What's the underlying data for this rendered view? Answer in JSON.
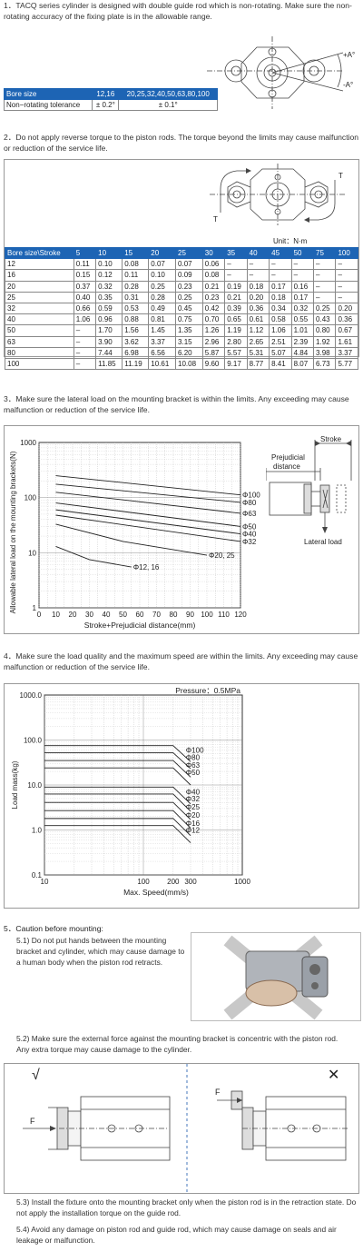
{
  "section1": {
    "text": "1．TACQ series cylinder is designed with double guide rod which is non-rotating. Make sure the non-rotating accuracy of the fixing plate is in the allowable range.",
    "table": {
      "header": [
        "Bore size",
        "12,16",
        "20,25,32,40,50,63,80,100"
      ],
      "row": [
        "Non−rotating tolerance",
        "± 0.2°",
        "± 0.1°"
      ]
    },
    "diagram": {
      "plus_label": "+A°",
      "minus_label": "-A°"
    }
  },
  "section2": {
    "text": "2．Do not apply reverse torque to the piston rods. The torque beyond the limits may cause malfunction or reduction of the service life.",
    "diagram": {
      "t_left": "T",
      "t_right": "T"
    },
    "unit": "Unit：N·m",
    "table": {
      "header": [
        "Bore size\\Stroke",
        "5",
        "10",
        "15",
        "20",
        "25",
        "30",
        "35",
        "40",
        "45",
        "50",
        "75",
        "100"
      ],
      "rows": [
        [
          "12",
          "0.11",
          "0.10",
          "0.08",
          "0.07",
          "0.07",
          "0.06",
          "–",
          "–",
          "–",
          "–",
          "–",
          "–"
        ],
        [
          "16",
          "0.15",
          "0.12",
          "0.11",
          "0.10",
          "0.09",
          "0.08",
          "–",
          "–",
          "–",
          "–",
          "–",
          "–"
        ],
        [
          "20",
          "0.37",
          "0.32",
          "0.28",
          "0.25",
          "0.23",
          "0.21",
          "0.19",
          "0.18",
          "0.17",
          "0.16",
          "–",
          "–"
        ],
        [
          "25",
          "0.40",
          "0.35",
          "0.31",
          "0.28",
          "0.25",
          "0.23",
          "0.21",
          "0.20",
          "0.18",
          "0.17",
          "–",
          "–"
        ],
        [
          "32",
          "0.66",
          "0.59",
          "0.53",
          "0.49",
          "0.45",
          "0.42",
          "0.39",
          "0.36",
          "0.34",
          "0.32",
          "0.25",
          "0.20"
        ],
        [
          "40",
          "1.06",
          "0.96",
          "0.88",
          "0.81",
          "0.75",
          "0.70",
          "0.65",
          "0.61",
          "0.58",
          "0.55",
          "0.43",
          "0.36"
        ],
        [
          "50",
          "–",
          "1.70",
          "1.56",
          "1.45",
          "1.35",
          "1.26",
          "1.19",
          "1.12",
          "1.06",
          "1.01",
          "0.80",
          "0.67"
        ],
        [
          "63",
          "–",
          "3.90",
          "3.62",
          "3.37",
          "3.15",
          "2.96",
          "2.80",
          "2.65",
          "2.51",
          "2.39",
          "1.92",
          "1.61"
        ],
        [
          "80",
          "–",
          "7.44",
          "6.98",
          "6.56",
          "6.20",
          "5.87",
          "5.57",
          "5.31",
          "5.07",
          "4.84",
          "3.98",
          "3.37"
        ],
        [
          "100",
          "–",
          "11.85",
          "11.19",
          "10.61",
          "10.08",
          "9.60",
          "9.17",
          "8.77",
          "8.41",
          "8.07",
          "6.73",
          "5.77"
        ]
      ]
    }
  },
  "section3": {
    "text": "3．Make sure the lateral load on the mounting bracket is within the limits. Any exceeding may cause malfunction or reduction of the service life.",
    "diagram": {
      "stroke": "Stroke",
      "prejudicial": "Prejudicial",
      "distance": "distance",
      "lateral": "Lateral load"
    }
  },
  "section4": {
    "text": "4．Make sure the load quality and the maximum speed are within the limits. Any exceeding may cause malfunction or reduction of the service life."
  },
  "section5": {
    "title": "5．Caution before mounting:",
    "item1": "5.1) Do not put hands between the mounting bracket and cylinder, which may cause damage to a human body when the piston rod retracts.",
    "item2": "5.2) Make sure the external force against the mounting bracket is concentric with the piston rod. Any extra torque may cause damage to the cylinder.",
    "ok_mark": "√",
    "ng_mark": "✕",
    "force_label": "F",
    "item3": "5.3) Install the fixture onto the mounting bracket only when the piston rod is in the retraction state. Do not apply the installation torque on the guide rod.",
    "item4": "5.4) Avoid any damage on piston rod and guide rod, which may cause damage on seals and air leakage or malfunction."
  },
  "chart_data": [
    {
      "type": "line",
      "title": "",
      "xlabel": "Stroke+Prejudicial distance(mm)",
      "ylabel": "Allowable lateral load on the mounting brackets(N)",
      "xlim": [
        0,
        120
      ],
      "ylim": [
        1,
        1000
      ],
      "yscale": "log",
      "x_ticks": [
        "0",
        "10",
        "20",
        "30",
        "40",
        "50",
        "60",
        "70",
        "80",
        "90",
        "100",
        "110",
        "120"
      ],
      "y_ticks": [
        "1",
        "10",
        "100",
        "1000"
      ],
      "grid": true,
      "series": [
        {
          "name": "Φ100",
          "x": [
            10,
            120
          ],
          "y": [
            250,
            112
          ]
        },
        {
          "name": "Φ80",
          "x": [
            10,
            120
          ],
          "y": [
            175,
            82
          ]
        },
        {
          "name": "Φ63",
          "x": [
            10,
            120
          ],
          "y": [
            125,
            52
          ]
        },
        {
          "name": "Φ50",
          "x": [
            10,
            120
          ],
          "y": [
            80,
            30
          ]
        },
        {
          "name": "Φ40",
          "x": [
            10,
            120
          ],
          "y": [
            60,
            22
          ]
        },
        {
          "name": "Φ32",
          "x": [
            10,
            120
          ],
          "y": [
            48,
            16
          ]
        },
        {
          "name": "Φ20, 25",
          "x": [
            10,
            50,
            100
          ],
          "y": [
            33,
            16,
            9
          ]
        },
        {
          "name": "Φ12, 16",
          "x": [
            10,
            30,
            55
          ],
          "y": [
            13,
            7.5,
            5.5
          ]
        }
      ]
    },
    {
      "type": "line",
      "title": "Pressure：0.5MPa",
      "xlabel": "Max. Speed(mm/s)",
      "ylabel": "Load mass(kg)",
      "xscale": "log",
      "yscale": "log",
      "xlim": [
        10,
        1000
      ],
      "ylim": [
        0.1,
        1000
      ],
      "x_ticks": [
        "10",
        "100",
        "200",
        "300",
        "1000"
      ],
      "y_ticks": [
        "0.1",
        "1.0",
        "10.0",
        "100.0",
        "1000.0"
      ],
      "grid": true,
      "series": [
        {
          "name": "Φ100",
          "x": [
            10,
            200,
            300
          ],
          "y": [
            75,
            75,
            33
          ]
        },
        {
          "name": "Φ80",
          "x": [
            10,
            200,
            300
          ],
          "y": [
            52,
            52,
            23
          ]
        },
        {
          "name": "Φ63",
          "x": [
            10,
            200,
            300
          ],
          "y": [
            35,
            35,
            15
          ]
        },
        {
          "name": "Φ50",
          "x": [
            10,
            200,
            300
          ],
          "y": [
            24,
            24,
            10
          ]
        },
        {
          "name": "Φ40",
          "x": [
            10,
            200,
            300
          ],
          "y": [
            9,
            9,
            3.8
          ]
        },
        {
          "name": "Φ32",
          "x": [
            10,
            200,
            300
          ],
          "y": [
            6.3,
            6.3,
            2.6
          ]
        },
        {
          "name": "Φ25",
          "x": [
            10,
            200,
            300
          ],
          "y": [
            4.1,
            4.1,
            1.7
          ]
        },
        {
          "name": "Φ20",
          "x": [
            10,
            200,
            300
          ],
          "y": [
            2.7,
            2.7,
            1.1
          ]
        },
        {
          "name": "Φ16",
          "x": [
            10,
            200,
            300
          ],
          "y": [
            1.8,
            1.8,
            0.75
          ]
        },
        {
          "name": "Φ12",
          "x": [
            10,
            200,
            300
          ],
          "y": [
            1.25,
            1.25,
            0.52
          ]
        }
      ]
    }
  ]
}
